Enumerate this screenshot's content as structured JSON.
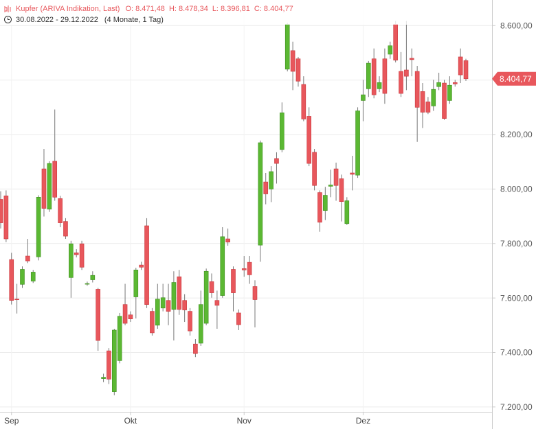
{
  "chart_data": {
    "type": "candlestick",
    "title": "Kupfer (ARIVA Indikation, Last)",
    "ohlc_labels": [
      "O: 8.471,48",
      "H: 8.478,34",
      "L: 8.396,81",
      "C: 8.404,77"
    ],
    "date_range": "30.08.2022 - 29.12.2022",
    "period": "(4 Monate, 1 Tag)",
    "last_price": {
      "value": 8404.77,
      "label": "8.404,77"
    },
    "categories": [
      null,
      null,
      "Sep",
      null,
      null,
      null,
      null,
      null,
      null,
      null,
      null,
      null,
      null,
      null,
      null,
      null,
      null,
      null,
      null,
      null,
      null,
      null,
      null,
      null,
      "Okt",
      null,
      null,
      null,
      null,
      null,
      null,
      null,
      null,
      null,
      null,
      null,
      null,
      null,
      null,
      null,
      null,
      null,
      null,
      null,
      null,
      "Nov",
      null,
      null,
      null,
      null,
      null,
      null,
      null,
      null,
      null,
      null,
      null,
      null,
      null,
      null,
      null,
      null,
      null,
      null,
      null,
      null,
      null,
      "Dez",
      null,
      null,
      null,
      null,
      null,
      null,
      null,
      null,
      null,
      null,
      null,
      null,
      null,
      null,
      null,
      null,
      null,
      null,
      null
    ],
    "series": [
      {
        "up_color": "#5bb833",
        "down_color": "#e8575c",
        "open": [
          7962,
          7975,
          7741,
          7596,
          7650,
          7754,
          7662,
          7751,
          8074,
          7926,
          8102,
          7965,
          7881,
          7675,
          7766,
          7799,
          7651,
          7667,
          7632,
          7304,
          7406,
          7256,
          7370,
          7576,
          7538,
          7604,
          7721,
          7865,
          7551,
          7500,
          7563,
          7591,
          7558,
          7678,
          7591,
          7551,
          7431,
          7434,
          7507,
          7660,
          7591,
          7609,
          7817,
          7705,
          7545,
          7708,
          7731,
          7642,
          7794,
          8026,
          8000,
          8112,
          8145,
          8440,
          8508,
          8478,
          8384,
          8267,
          8135,
          7987,
          7921,
          8010,
          8074,
          8038,
          7873,
          8059,
          8051,
          8325,
          8368,
          8478,
          8368,
          8478,
          8495,
          8605,
          8432,
          8437,
          8480,
          8432,
          8358,
          8320,
          8305,
          8376,
          8389,
          8325,
          8391,
          8485,
          8471.48
        ],
        "high": [
          7992,
          7995,
          7766,
          7652,
          7716,
          7817,
          7703,
          7977,
          8147,
          8102,
          8292,
          7975,
          7893,
          7810,
          7779,
          7810,
          7660,
          7698,
          7637,
          7322,
          7416,
          7487,
          7545,
          7652,
          7551,
          7711,
          7733,
          7893,
          7563,
          7652,
          7652,
          7652,
          7698,
          7703,
          7614,
          7563,
          7449,
          7627,
          7708,
          7690,
          7627,
          7860,
          7855,
          7716,
          7558,
          7754,
          7754,
          7665,
          8178,
          8059,
          8084,
          8135,
          8318,
          8610,
          8541,
          8485,
          8414,
          8300,
          8147,
          7995,
          8008,
          8071,
          8097,
          8053,
          7970,
          8122,
          8300,
          8401,
          8470,
          8516,
          8414,
          8516,
          8541,
          8617,
          8503,
          8617,
          8516,
          8452,
          8389,
          8338,
          8401,
          8427,
          8401,
          8414,
          8401,
          8516,
          8478.34
        ],
        "low": [
          7855,
          7805,
          7576,
          7543,
          7637,
          7728,
          7655,
          7738,
          7899,
          7916,
          7957,
          7860,
          7817,
          7601,
          7749,
          7703,
          7645,
          7657,
          7406,
          7291,
          7284,
          7243,
          7360,
          7500,
          7512,
          7525,
          7703,
          7563,
          7462,
          7487,
          7551,
          7500,
          7444,
          7538,
          7512,
          7462,
          7383,
          7424,
          7500,
          7601,
          7487,
          7601,
          7792,
          7551,
          7482,
          7678,
          7652,
          7492,
          7733,
          7944,
          7952,
          8020,
          8135,
          8432,
          8363,
          8376,
          8249,
          8084,
          7995,
          7843,
          7886,
          7970,
          7957,
          7881,
          7868,
          7995,
          8041,
          8249,
          8338,
          8333,
          8356,
          8313,
          8478,
          8465,
          8338,
          8363,
          8414,
          8173,
          8224,
          8275,
          8287,
          8363,
          8254,
          8313,
          8376,
          8389,
          8396.81
        ],
        "close": [
          7876,
          7817,
          7591,
          7594,
          7705,
          7736,
          7695,
          7970,
          7929,
          8094,
          7970,
          7876,
          7827,
          7799,
          7759,
          7713,
          7653,
          7683,
          7444,
          7309,
          7302,
          7482,
          7533,
          7507,
          7523,
          7703,
          7713,
          7576,
          7472,
          7596,
          7601,
          7551,
          7657,
          7558,
          7556,
          7479,
          7396,
          7576,
          7698,
          7619,
          7573,
          7825,
          7805,
          7619,
          7502,
          7703,
          7685,
          7594,
          8170,
          7982,
          8064,
          8094,
          8280,
          8605,
          8432,
          8396,
          8257,
          8094,
          8013,
          7878,
          7977,
          8015,
          8013,
          7954,
          7957,
          8054,
          8287,
          8346,
          8462,
          8346,
          8391,
          8351,
          8526,
          8473,
          8351,
          8414,
          8475,
          8300,
          8282,
          8282,
          8366,
          8391,
          8259,
          8381,
          8386,
          8419,
          8404.77
        ]
      }
    ],
    "ylim": [
      7119,
      8694
    ],
    "yticks": [
      {
        "value": 7200,
        "label": "7.200,00"
      },
      {
        "value": 7400,
        "label": "7.400,00"
      },
      {
        "value": 7600,
        "label": "7.600,00"
      },
      {
        "value": 7800,
        "label": "7.800,00"
      },
      {
        "value": 8000,
        "label": "8.000,00"
      },
      {
        "value": 8200,
        "label": "8.200,00"
      },
      {
        "value": 8400,
        "label": "8.400,00"
      },
      {
        "value": 8600,
        "label": "8.600,00"
      }
    ],
    "grid": true
  }
}
